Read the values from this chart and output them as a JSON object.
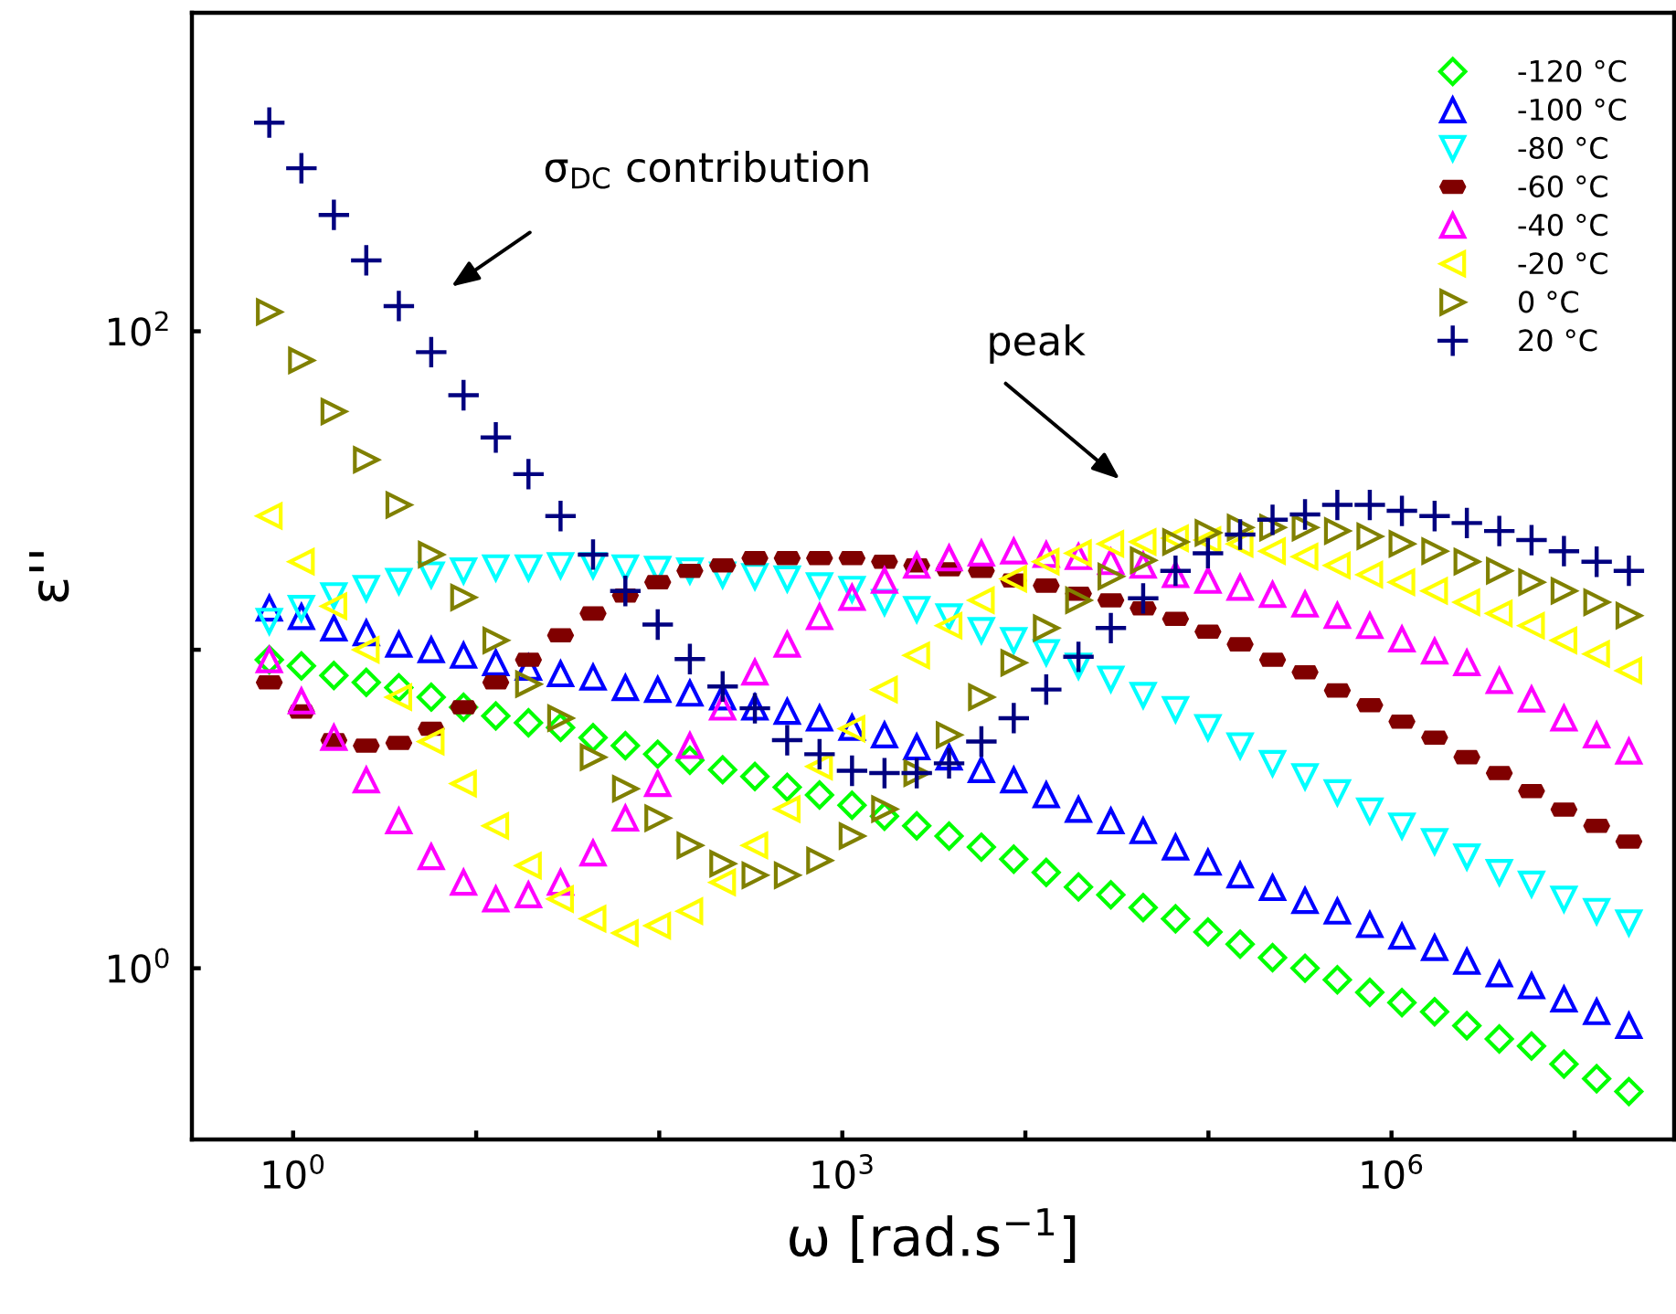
{
  "chart_data": {
    "type": "scatter",
    "xlabel": "ω [rad.s$^{−1}$]",
    "ylabel": "ε''",
    "log": "xy",
    "grid": false,
    "legend": "top right",
    "xlim": [
      0.28,
      35000000
    ],
    "ylim": [
      0.29,
      1000
    ],
    "xticks": [
      {
        "value": 1,
        "label": "10$^{0}$"
      },
      {
        "value": 10,
        "label": null
      },
      {
        "value": 100,
        "label": null
      },
      {
        "value": 1000,
        "label": "10$^{3}$"
      },
      {
        "value": 10000,
        "label": null
      },
      {
        "value": 100000,
        "label": null
      },
      {
        "value": 1000000,
        "label": "10$^{6}$"
      },
      {
        "value": 10000000,
        "label": null
      }
    ],
    "yticks": [
      {
        "value": 1,
        "label": "10$^{0}$"
      },
      {
        "value": 10,
        "label": null
      },
      {
        "value": 100,
        "label": "10$^{2}$"
      }
    ],
    "x": [
      0.741,
      1.11,
      1.67,
      2.51,
      3.78,
      5.68,
      8.53,
      12.8,
      19.3,
      28.9,
      43.5,
      65.3,
      98.1,
      147,
      222,
      333,
      500,
      751,
      1130,
      1700,
      2550,
      3830,
      5750,
      8640,
      13000,
      19500,
      29300,
      44000,
      66100,
      99400,
      149000,
      224000,
      337000,
      506000,
      761000,
      1140000,
      1720000,
      2580000,
      3880000,
      5820000,
      8750000,
      13200000,
      19800000
    ],
    "annotations": [
      "σ$_{DC}$ contribution",
      "peak"
    ],
    "series": [
      {
        "name": "-120 °C",
        "color": "#00ff00",
        "marker": "diamond",
        "values": [
          9.3,
          8.9,
          8.3,
          7.9,
          7.6,
          7.1,
          6.6,
          6.2,
          5.9,
          5.7,
          5.3,
          5.0,
          4.7,
          4.5,
          4.2,
          4.0,
          3.7,
          3.5,
          3.25,
          3.0,
          2.8,
          2.6,
          2.4,
          2.2,
          2.0,
          1.8,
          1.7,
          1.55,
          1.43,
          1.3,
          1.19,
          1.08,
          1.0,
          0.92,
          0.84,
          0.78,
          0.73,
          0.66,
          0.6,
          0.57,
          0.5,
          0.45,
          0.41
        ]
      },
      {
        "name": "-100 °C",
        "color": "#0000ff",
        "marker": "triangle",
        "values": [
          13.5,
          12.7,
          11.7,
          11.3,
          10.4,
          10.0,
          9.6,
          9.1,
          8.8,
          8.4,
          8.2,
          7.6,
          7.5,
          7.3,
          7.1,
          6.6,
          6.4,
          6.1,
          5.7,
          5.4,
          4.95,
          4.6,
          4.2,
          3.9,
          3.5,
          3.15,
          2.9,
          2.7,
          2.4,
          2.15,
          1.96,
          1.79,
          1.63,
          1.51,
          1.37,
          1.26,
          1.16,
          1.05,
          0.96,
          0.88,
          0.8,
          0.73,
          0.66
        ]
      },
      {
        "name": "-80 °C",
        "color": "#00ffff",
        "marker": "triangle_down",
        "values": [
          12.3,
          13.5,
          14.8,
          15.6,
          16.4,
          17.2,
          17.7,
          18.1,
          18.1,
          18.4,
          18.4,
          18.1,
          17.9,
          17.7,
          17.2,
          17.0,
          16.7,
          15.9,
          15.5,
          14.1,
          13.4,
          12.7,
          11.5,
          10.7,
          9.8,
          8.9,
          8.1,
          7.2,
          6.5,
          5.7,
          5.0,
          4.4,
          4.0,
          3.56,
          3.12,
          2.8,
          2.5,
          2.24,
          2.0,
          1.84,
          1.65,
          1.51,
          1.39
        ]
      },
      {
        "name": "-60 °C",
        "color": "#800000",
        "values": [
          7.9,
          6.4,
          5.2,
          5.0,
          5.1,
          5.65,
          6.6,
          7.9,
          9.3,
          11.1,
          13.0,
          14.8,
          16.3,
          17.7,
          18.4,
          19.4,
          19.4,
          19.4,
          19.4,
          18.9,
          18.4,
          17.9,
          17.7,
          16.5,
          15.9,
          15.0,
          14.3,
          13.5,
          12.5,
          11.4,
          10.4,
          9.3,
          8.5,
          7.45,
          6.7,
          5.95,
          5.3,
          4.6,
          4.1,
          3.6,
          3.15,
          2.8,
          2.5
        ]
      },
      {
        "name": "-40 °C",
        "color": "#ff00ff",
        "marker": "triangle",
        "values": [
          9.3,
          6.9,
          5.3,
          3.9,
          2.9,
          2.24,
          1.86,
          1.65,
          1.7,
          1.86,
          2.3,
          2.96,
          3.8,
          5.0,
          6.6,
          8.5,
          10.4,
          12.7,
          14.6,
          16.5,
          18.4,
          19.4,
          20.1,
          20.4,
          19.9,
          19.6,
          18.9,
          18.4,
          17.2,
          16.5,
          15.7,
          14.9,
          13.9,
          12.8,
          11.9,
          10.8,
          9.9,
          9.1,
          8.0,
          7.0,
          6.1,
          5.4,
          4.8
        ]
      },
      {
        "name": "-20 °C",
        "color": "#ffff00",
        "marker": "triangle_left",
        "values": [
          26.3,
          18.9,
          13.7,
          10.0,
          7.1,
          5.15,
          3.8,
          2.8,
          2.1,
          1.65,
          1.43,
          1.29,
          1.36,
          1.51,
          1.86,
          2.43,
          3.16,
          4.3,
          5.65,
          7.5,
          9.6,
          11.9,
          14.3,
          16.7,
          18.9,
          20.1,
          21.5,
          21.8,
          22.4,
          22.1,
          21.5,
          20.4,
          19.6,
          18.4,
          17.2,
          16.3,
          15.3,
          14.1,
          13.0,
          11.9,
          10.7,
          9.7,
          8.6
        ]
      },
      {
        "name": "0 °C",
        "color": "#808000",
        "marker": "triangle_right",
        "values": [
          115,
          81,
          56,
          39.5,
          28.5,
          19.9,
          14.6,
          10.7,
          7.8,
          6.1,
          4.6,
          3.66,
          2.96,
          2.43,
          2.13,
          1.96,
          1.96,
          2.18,
          2.6,
          3.16,
          4.1,
          5.4,
          7.1,
          9.1,
          11.7,
          14.3,
          17.0,
          19.1,
          21.8,
          23.3,
          24.2,
          24.2,
          24.2,
          23.6,
          22.7,
          21.5,
          20.4,
          18.9,
          17.7,
          16.3,
          15.3,
          14.1,
          12.8
        ]
      },
      {
        "name": "20 °C",
        "color": "#000080",
        "marker": "plus",
        "values": [
          452,
          325,
          232,
          167,
          120,
          86,
          63,
          46.4,
          35.6,
          26.3,
          19.9,
          15.3,
          12.0,
          9.35,
          7.67,
          6.55,
          5.2,
          4.7,
          4.17,
          4.1,
          4.1,
          4.4,
          5.15,
          6.1,
          7.5,
          9.5,
          11.7,
          14.5,
          17.7,
          20.1,
          23.0,
          25.6,
          26.6,
          28.5,
          28.5,
          27.3,
          26.3,
          25.0,
          23.6,
          22.1,
          20.4,
          18.9,
          17.7
        ]
      }
    ]
  }
}
